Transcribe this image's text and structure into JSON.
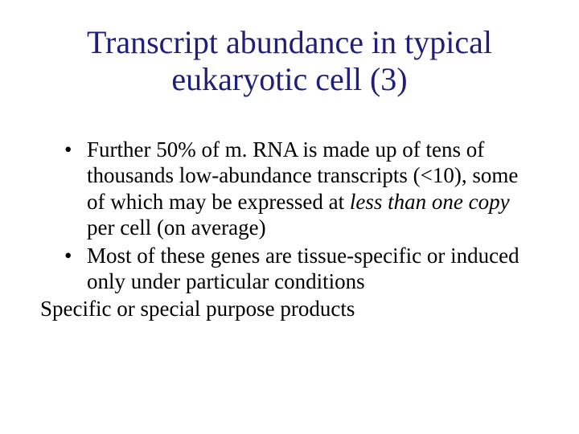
{
  "title_color": "#1f1e7a",
  "body_color": "#000000",
  "background_color": "#ffffff",
  "title_fontsize": 40,
  "body_fontsize": 27,
  "title": "Transcript abundance in typical eukaryotic cell (3)",
  "bullets": [
    {
      "pre": "Further 50% of m. RNA is made up of tens of thousands low-abundance transcripts (<10), some of which may be expressed at ",
      "italic": "less than one copy",
      "post": " per cell (on average)"
    },
    {
      "pre": "Most of these genes are tissue-specific or induced only under particular conditions",
      "italic": "",
      "post": ""
    }
  ],
  "closing_line": "Specific or special purpose products"
}
